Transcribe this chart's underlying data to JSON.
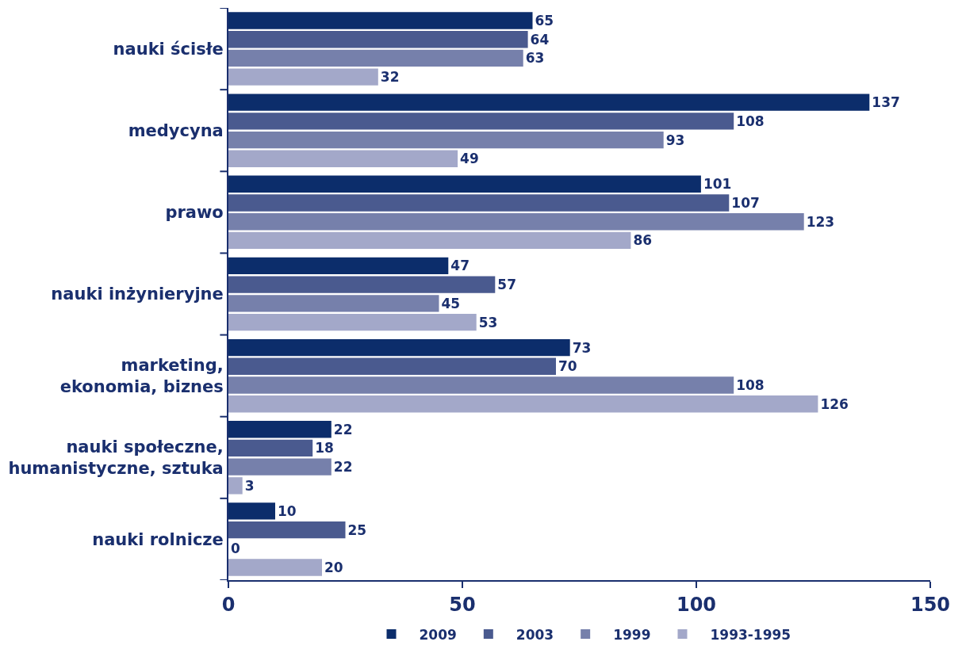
{
  "chart_data": {
    "type": "bar",
    "orientation": "horizontal",
    "categories": [
      "nauki ścisłe",
      "medycyna",
      "prawo",
      "nauki inżynieryjne",
      "marketing, ekonomia, biznes",
      "nauki społeczne, humanistyczne, sztuka",
      "nauki rolnicze"
    ],
    "series": [
      {
        "name": "2009",
        "color": "#0c2d6b",
        "values": [
          65,
          137,
          101,
          47,
          73,
          22,
          10
        ]
      },
      {
        "name": "2003",
        "color": "#4a5a8f",
        "values": [
          64,
          108,
          107,
          57,
          70,
          18,
          25
        ]
      },
      {
        "name": "1999",
        "color": "#7680ab",
        "values": [
          63,
          93,
          123,
          45,
          108,
          22,
          0
        ]
      },
      {
        "name": "1993-1995",
        "color": "#a3a8c9",
        "values": [
          32,
          49,
          86,
          53,
          126,
          3,
          20
        ]
      }
    ],
    "xlim": [
      0,
      150
    ],
    "xticks": [
      0,
      50,
      100,
      150
    ],
    "data_labels": true,
    "legend": "bottom"
  }
}
